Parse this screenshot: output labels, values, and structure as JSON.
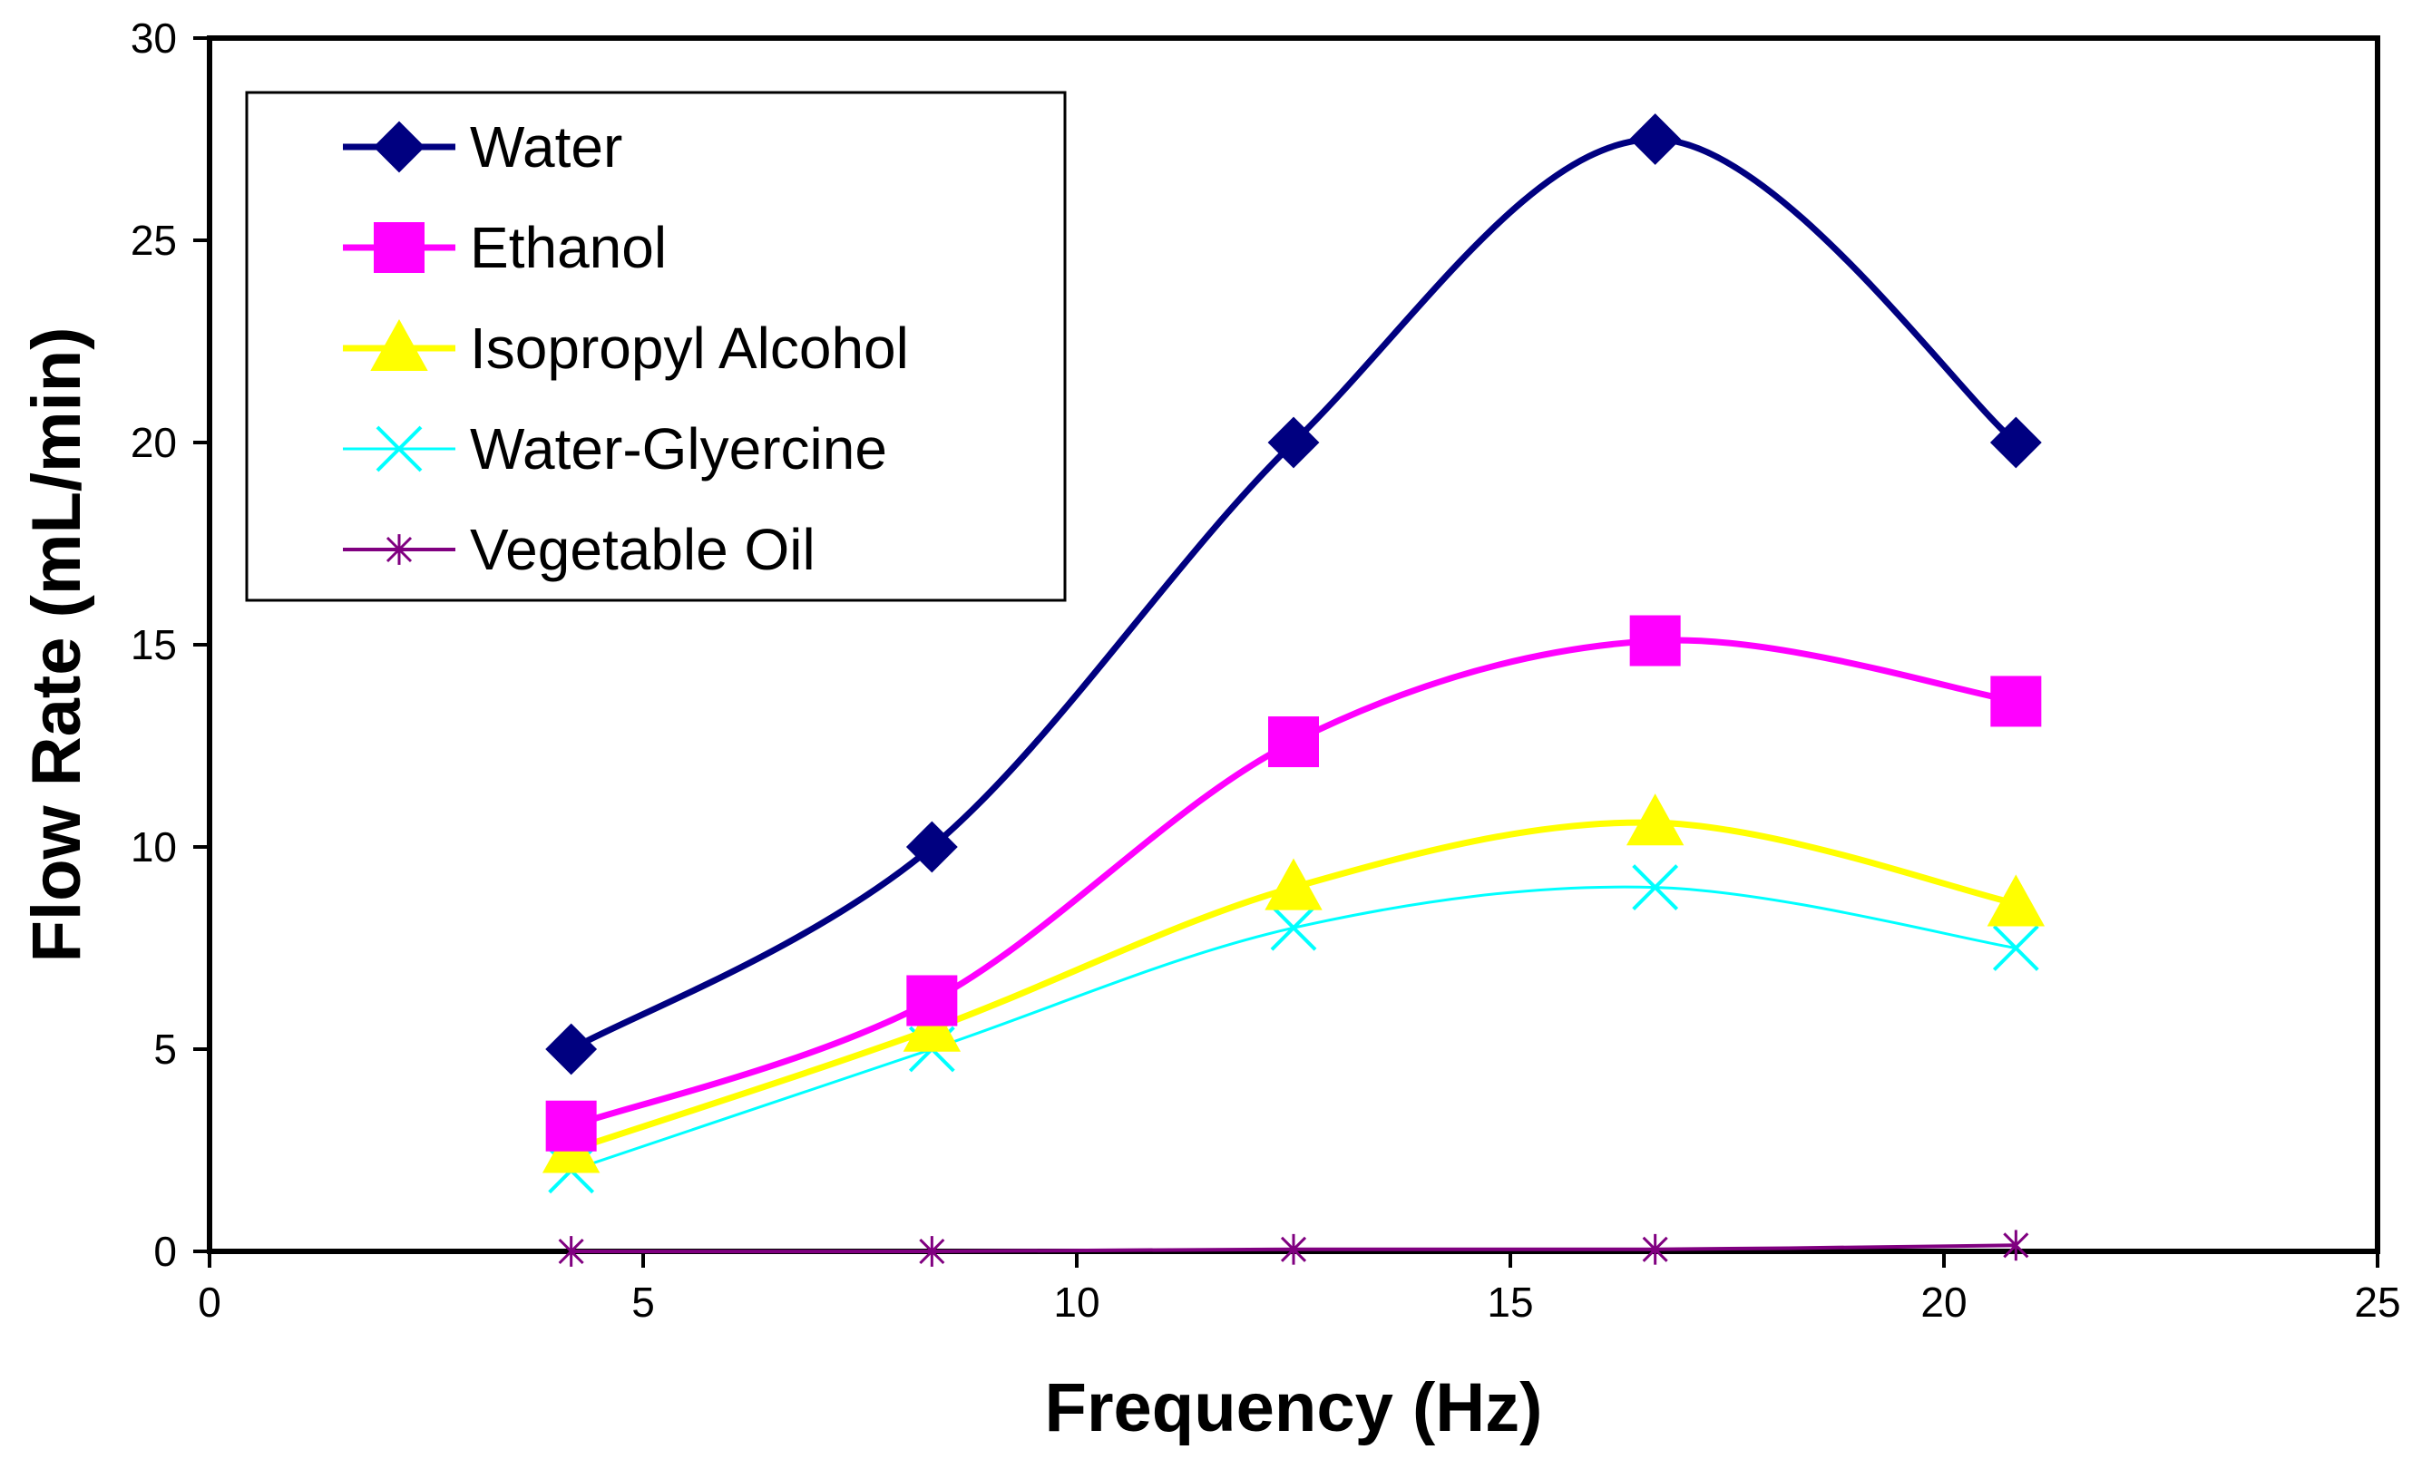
{
  "chart_data": {
    "type": "line",
    "title": "",
    "xlabel": "Frequency (Hz)",
    "ylabel": "Flow Rate (mL/min)",
    "xlim": [
      0,
      25
    ],
    "ylim": [
      0,
      30
    ],
    "xticks": [
      0,
      5,
      10,
      15,
      20,
      25
    ],
    "yticks": [
      0,
      5,
      10,
      15,
      20,
      25,
      30
    ],
    "xtick_labels": [
      "0",
      "5",
      "10",
      "15",
      "20",
      "25"
    ],
    "ytick_labels": [
      "0",
      "5",
      "10",
      "15",
      "20",
      "25",
      "30"
    ],
    "grid": false,
    "legend_position": "top-left",
    "smooth": true,
    "x": [
      4.17,
      8.33,
      12.5,
      16.67,
      20.83
    ],
    "series": [
      {
        "name": "Water",
        "values": [
          5,
          10,
          20,
          27.5,
          20
        ],
        "color": "#000080",
        "marker": "diamond"
      },
      {
        "name": "Ethanol",
        "values": [
          3.1,
          6.2,
          12.6,
          15.1,
          13.6
        ],
        "color": "#ff00ff",
        "marker": "square"
      },
      {
        "name": "Isopropyl Alcohol",
        "values": [
          2.5,
          5.5,
          9.0,
          10.6,
          8.6
        ],
        "color": "#ffff00",
        "marker": "triangle"
      },
      {
        "name": "Water-Glyercine",
        "values": [
          2.0,
          5.0,
          8.0,
          9.0,
          7.5
        ],
        "color": "#00ffff",
        "marker": "x"
      },
      {
        "name": "Vegetable Oil",
        "values": [
          0.0,
          0.0,
          0.05,
          0.05,
          0.15
        ],
        "color": "#800080",
        "marker": "star"
      }
    ]
  }
}
